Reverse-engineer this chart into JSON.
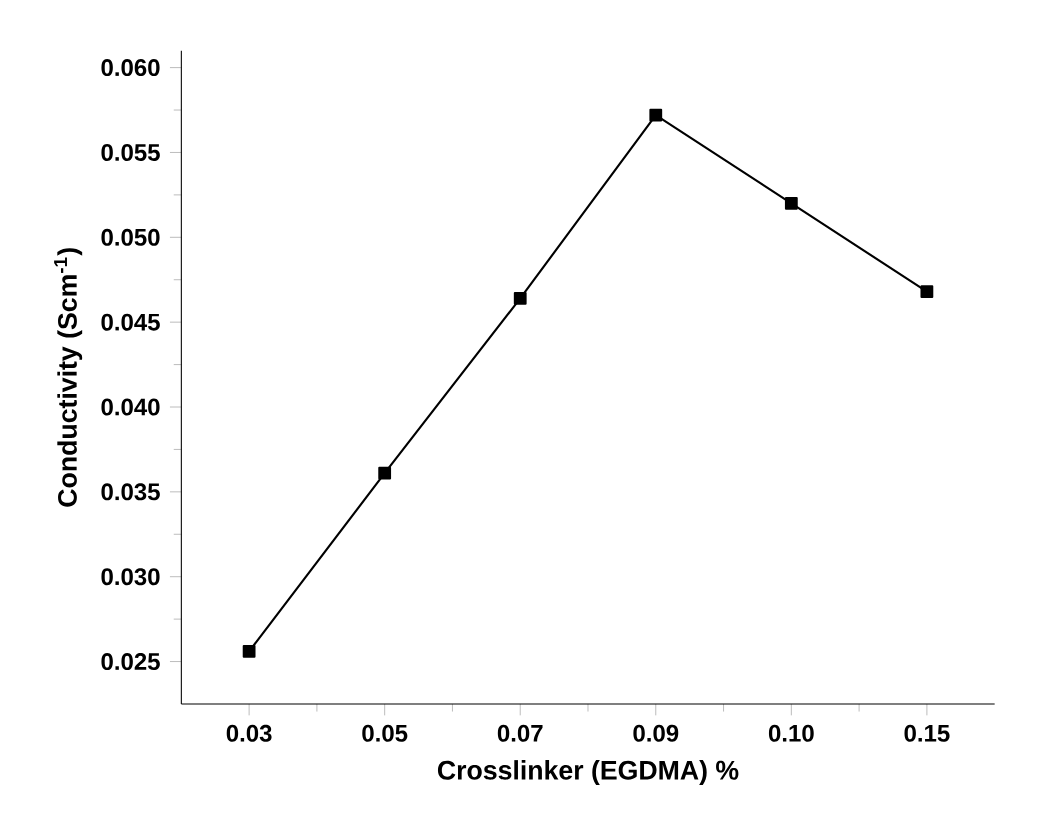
{
  "chart_data": {
    "type": "line",
    "xlabel": "Crosslinker (EGDMA) %",
    "ylabel": "Conductivity (Scm$^{-1}$)",
    "categories": [
      "0.03",
      "0.05",
      "0.07",
      "0.09",
      "0.10",
      "0.15"
    ],
    "series": [
      {
        "color": "#000000",
        "values": [
          0.0256,
          0.0361,
          0.0464,
          0.0572,
          0.052,
          0.0468
        ]
      }
    ],
    "ylim": [
      0.0225,
      0.061
    ],
    "yticks": [
      {
        "value": 0.025,
        "label": "0.025"
      },
      {
        "value": 0.03,
        "label": "0.030"
      },
      {
        "value": 0.035,
        "label": "0.035"
      },
      {
        "value": 0.04,
        "label": "0.040"
      },
      {
        "value": 0.045,
        "label": "0.045"
      },
      {
        "value": 0.05,
        "label": "0.050"
      },
      {
        "value": 0.055,
        "label": "0.055"
      },
      {
        "value": 0.06,
        "label": "0.060"
      }
    ],
    "marker": "square",
    "line_style": "solid"
  }
}
